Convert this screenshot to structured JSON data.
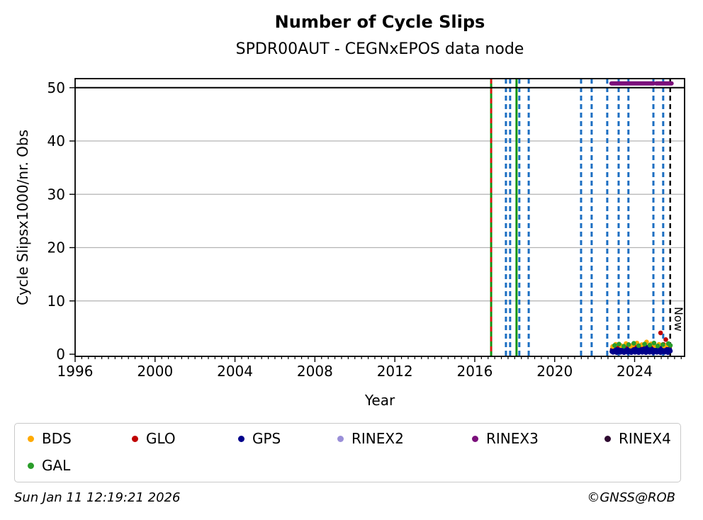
{
  "footer": {
    "timestamp": "Sun Jan 11 12:19:21 2026",
    "copyright": "©GNSS@ROB"
  },
  "legend": {
    "items": [
      {
        "label": "BDS",
        "color": "#ffaa00",
        "row": 0,
        "col": 0
      },
      {
        "label": "GLO",
        "color": "#c00000",
        "row": 0,
        "col": 1
      },
      {
        "label": "GPS",
        "color": "#00008b",
        "row": 0,
        "col": 2
      },
      {
        "label": "RINEX2",
        "color": "#9a8fd8",
        "row": 0,
        "col": 3
      },
      {
        "label": "RINEX3",
        "color": "#7b0f7b",
        "row": 0,
        "col": 4
      },
      {
        "label": "RINEX4",
        "color": "#2e0a30",
        "row": 0,
        "col": 5
      },
      {
        "label": "GAL",
        "color": "#2a9d2a",
        "row": 1,
        "col": 0
      }
    ]
  },
  "chart_data": {
    "type": "scatter",
    "title": "Number of Cycle Slips",
    "subtitle": "SPDR00AUT - CEGNxEPOS data node",
    "xlabel": "Year",
    "ylabel": "Cycle Slipsx1000/nr. Obs",
    "xlim": [
      1996.0,
      2026.5
    ],
    "ylim": [
      -0.4,
      51.7
    ],
    "xticks": [
      1996,
      2000,
      2004,
      2008,
      2012,
      2016,
      2020,
      2024
    ],
    "yticks": [
      0,
      10,
      20,
      30,
      40,
      50
    ],
    "minor_tick_interval_years": 0.33333,
    "grid": "horizontal-only",
    "grid_y_values": [
      10,
      20,
      30,
      40
    ],
    "grid_color": "#b3b3b3",
    "threshold_line": {
      "y": 50,
      "color": "#000000"
    },
    "rinex3_line": {
      "y": 50.8,
      "color": "#7b0f7b",
      "segments": [
        [
          2022.84,
          2024.95
        ],
        [
          2025.08,
          2025.85
        ]
      ]
    },
    "now_marker": {
      "x": 2025.78,
      "label": "Now",
      "color": "#000000",
      "style": "dashed"
    },
    "event_lines": [
      {
        "x": 2016.82,
        "color": "#129412",
        "style": "solid"
      },
      {
        "x": 2016.82,
        "color": "#e81010",
        "style": "dashed"
      },
      {
        "x": 2017.56,
        "color": "#1b6ec2",
        "style": "dashed"
      },
      {
        "x": 2017.77,
        "color": "#1b6ec2",
        "style": "dashed"
      },
      {
        "x": 2018.09,
        "color": "#129412",
        "style": "solid"
      },
      {
        "x": 2018.23,
        "color": "#1b6ec2",
        "style": "dashed"
      },
      {
        "x": 2018.7,
        "color": "#1b6ec2",
        "style": "dashed"
      },
      {
        "x": 2021.32,
        "color": "#1b6ec2",
        "style": "dashed"
      },
      {
        "x": 2021.85,
        "color": "#1b6ec2",
        "style": "dashed"
      },
      {
        "x": 2022.63,
        "color": "#1b6ec2",
        "style": "dashed"
      },
      {
        "x": 2023.2,
        "color": "#1b6ec2",
        "style": "dashed"
      },
      {
        "x": 2023.69,
        "color": "#1b6ec2",
        "style": "dashed"
      },
      {
        "x": 2024.94,
        "color": "#1b6ec2",
        "style": "dashed"
      },
      {
        "x": 2025.43,
        "color": "#1b6ec2",
        "style": "dashed"
      }
    ],
    "series": [
      {
        "name": "GLO",
        "color": "#c00000",
        "band": {
          "x_start": 2022.88,
          "x_step": 0.048,
          "values": [
            0.9,
            1.3,
            0.7,
            1.1,
            1.5,
            0.8,
            1.2,
            1.6,
            0.95,
            1.35,
            0.75,
            1.45,
            0.9,
            1.3,
            0.7,
            1.1,
            1.5,
            0.8,
            1.2,
            1.6,
            0.95,
            1.35,
            0.75,
            1.45,
            0.9,
            1.3,
            0.7,
            1.1,
            1.5,
            0.8,
            1.2,
            1.6,
            0.95,
            1.35,
            0.75,
            1.45,
            0.9,
            1.3,
            0.7,
            1.1,
            1.5,
            0.8,
            1.2,
            1.6,
            0.95,
            1.35,
            0.75,
            1.45,
            0.9,
            1.3,
            0.7,
            1.1,
            1.5,
            0.8,
            1.2,
            1.6,
            0.95,
            1.35,
            0.75,
            1.45
          ]
        },
        "extra": [
          [
            2025.3,
            4.0
          ],
          [
            2025.56,
            2.75
          ],
          [
            2024.05,
            1.9
          ],
          [
            2025.44,
            1.85
          ],
          [
            2025.75,
            1.2
          ]
        ]
      },
      {
        "name": "GPS",
        "color": "#00008b",
        "band": {
          "x_start": 2022.86,
          "x_step": 0.0305,
          "values": [
            0.5,
            0.8,
            0.35,
            0.7,
            1.0,
            0.45,
            0.6,
            0.9,
            0.3,
            0.75,
            0.55,
            0.85,
            0.5,
            0.8,
            0.35,
            0.7,
            1.0,
            0.45,
            0.6,
            0.9,
            0.3,
            0.75,
            0.55,
            0.85,
            0.5,
            0.8,
            0.35,
            0.7,
            1.0,
            0.45,
            0.6,
            0.9,
            0.3,
            0.75,
            0.55,
            0.85,
            0.5,
            0.8,
            0.35,
            0.7,
            1.0,
            0.45,
            0.6,
            0.9,
            0.3,
            0.75,
            0.55,
            0.85,
            0.5,
            0.8,
            0.35,
            0.7,
            1.0,
            0.45,
            0.6,
            0.9,
            0.3,
            0.75,
            0.55,
            0.85,
            0.5,
            0.8,
            0.35,
            0.7,
            1.0,
            0.45,
            0.6,
            0.9,
            0.3,
            0.75,
            0.55,
            0.85,
            0.5,
            0.8,
            0.35,
            0.7,
            1.0,
            0.45,
            0.6,
            0.9,
            0.3,
            0.75,
            0.55,
            0.85,
            0.5,
            0.8,
            0.35,
            0.7,
            1.0,
            0.45,
            0.6,
            0.9,
            0.3,
            0.75,
            0.55,
            0.85
          ]
        },
        "extra": [
          [
            2023.4,
            1.1
          ],
          [
            2024.62,
            1.25
          ],
          [
            2024.66,
            1.12
          ],
          [
            2025.3,
            1.18
          ],
          [
            2025.79,
            0.6
          ]
        ]
      },
      {
        "name": "BDS",
        "color": "#ffaa00",
        "points": [
          [
            2022.9,
            1.45
          ],
          [
            2023.05,
            1.85
          ],
          [
            2023.32,
            1.6
          ],
          [
            2023.57,
            2.0
          ],
          [
            2023.8,
            1.5
          ],
          [
            2023.92,
            1.75
          ],
          [
            2024.12,
            2.1
          ],
          [
            2024.36,
            1.8
          ],
          [
            2024.6,
            2.3
          ],
          [
            2024.83,
            1.95
          ],
          [
            2025.02,
            1.6
          ],
          [
            2025.22,
            1.85
          ],
          [
            2025.47,
            1.55
          ],
          [
            2025.63,
            1.75
          ]
        ]
      },
      {
        "name": "GAL",
        "color": "#2a9d2a",
        "points": [
          [
            2023.0,
            1.65
          ],
          [
            2023.22,
            1.9
          ],
          [
            2023.46,
            1.5
          ],
          [
            2023.7,
            1.8
          ],
          [
            2023.96,
            2.05
          ],
          [
            2024.2,
            1.6
          ],
          [
            2024.5,
            1.9
          ],
          [
            2024.76,
            1.7
          ],
          [
            2024.97,
            2.1
          ],
          [
            2025.16,
            1.55
          ],
          [
            2025.41,
            1.8
          ],
          [
            2025.69,
            2.0
          ],
          [
            2025.79,
            1.65
          ]
        ]
      }
    ]
  }
}
